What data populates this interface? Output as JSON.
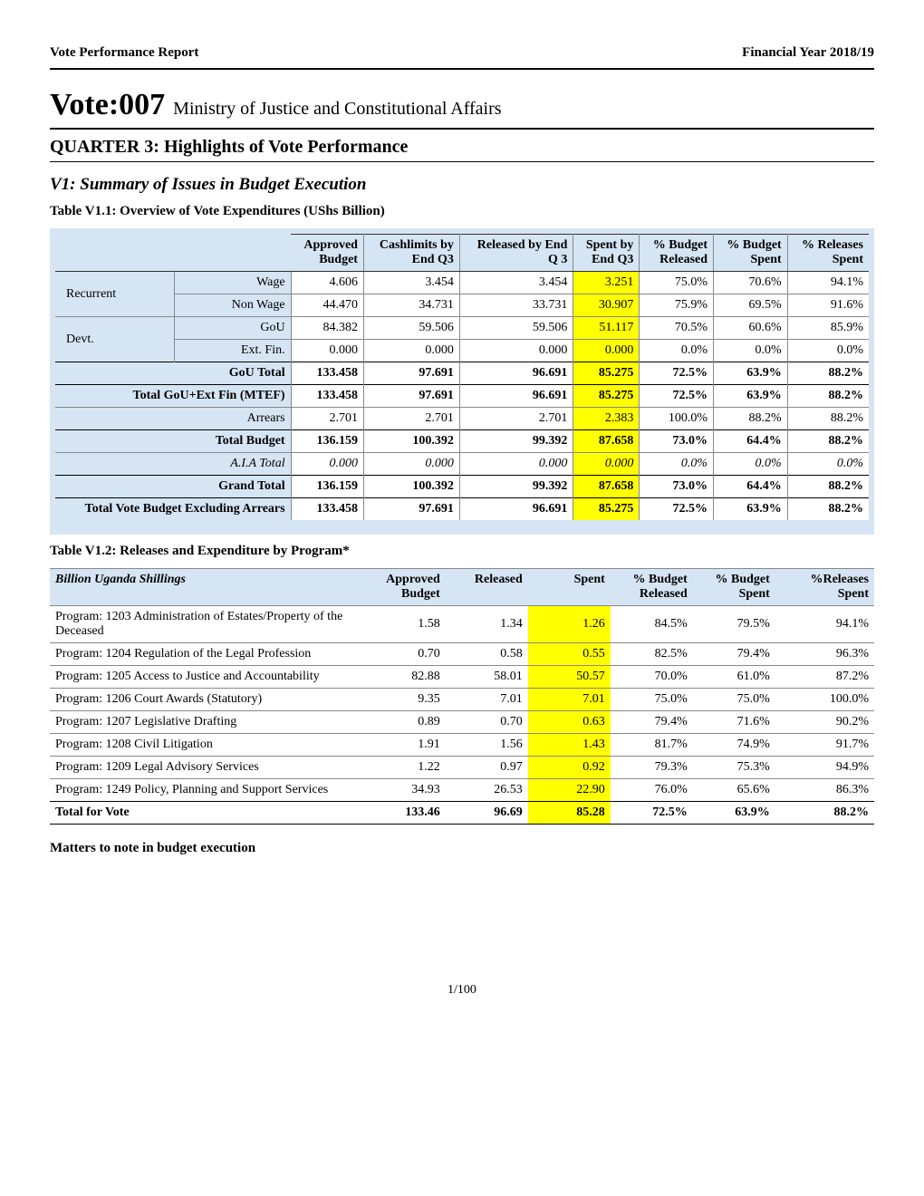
{
  "header": {
    "report": "Vote Performance Report",
    "fy": "Financial Year 2018/19"
  },
  "title": {
    "votePrefix": "Vote:007",
    "voteName": "Ministry of Justice and Constitutional Affairs",
    "quarter": "QUARTER 3: Highlights of Vote Performance",
    "v1": "V1: Summary of Issues in Budget Execution"
  },
  "t1": {
    "title": "Table V1.1: Overview of Vote Expenditures (UShs Billion)",
    "headers": [
      "Approved Budget",
      "Cashlimits by End Q3",
      "Released by End Q 3",
      "Spent by End Q3",
      "% Budget Released",
      "% Budget Spent",
      "% Releases Spent"
    ],
    "rows": [
      {
        "cat": "Recurrent",
        "label": "Wage",
        "v": [
          "4.606",
          "3.454",
          "3.454",
          "3.251",
          "75.0%",
          "70.6%",
          "94.1%"
        ],
        "catSpan": 2
      },
      {
        "label": "Non Wage",
        "v": [
          "44.470",
          "34.731",
          "33.731",
          "30.907",
          "75.9%",
          "69.5%",
          "91.6%"
        ]
      },
      {
        "cat": "Devt.",
        "label": "GoU",
        "v": [
          "84.382",
          "59.506",
          "59.506",
          "51.117",
          "70.5%",
          "60.6%",
          "85.9%"
        ],
        "catSpan": 2
      },
      {
        "label": "Ext. Fin.",
        "v": [
          "0.000",
          "0.000",
          "0.000",
          "0.000",
          "0.0%",
          "0.0%",
          "0.0%"
        ]
      },
      {
        "label": "GoU Total",
        "v": [
          "133.458",
          "97.691",
          "96.691",
          "85.275",
          "72.5%",
          "63.9%",
          "88.2%"
        ],
        "bold": true,
        "span": true
      },
      {
        "label": "Total GoU+Ext Fin (MTEF)",
        "v": [
          "133.458",
          "97.691",
          "96.691",
          "85.275",
          "72.5%",
          "63.9%",
          "88.2%"
        ],
        "bold": true,
        "span": true
      },
      {
        "label": "Arrears",
        "v": [
          "2.701",
          "2.701",
          "2.701",
          "2.383",
          "100.0%",
          "88.2%",
          "88.2%"
        ],
        "span": true
      },
      {
        "label": "Total Budget",
        "v": [
          "136.159",
          "100.392",
          "99.392",
          "87.658",
          "73.0%",
          "64.4%",
          "88.2%"
        ],
        "bold": true,
        "span": true
      },
      {
        "label": "A.I.A Total",
        "v": [
          "0.000",
          "0.000",
          "0.000",
          "0.000",
          "0.0%",
          "0.0%",
          "0.0%"
        ],
        "italic": true,
        "span": true
      },
      {
        "label": "Grand Total",
        "v": [
          "136.159",
          "100.392",
          "99.392",
          "87.658",
          "73.0%",
          "64.4%",
          "88.2%"
        ],
        "bold": true,
        "span": true
      },
      {
        "label": "Total Vote Budget Excluding Arrears",
        "v": [
          "133.458",
          "97.691",
          "96.691",
          "85.275",
          "72.5%",
          "63.9%",
          "88.2%"
        ],
        "bold": true,
        "span": true
      }
    ]
  },
  "t2": {
    "title": "Table V1.2: Releases and Expenditure by Program*",
    "headers": [
      "Billion Uganda Shillings",
      "Approved Budget",
      "Released",
      "Spent",
      "% Budget Released",
      "% Budget Spent",
      "%Releases Spent"
    ],
    "rows": [
      {
        "p": "Program: 1203 Administration of Estates/Property of the Deceased",
        "v": [
          "1.58",
          "1.34",
          "1.26",
          "84.5%",
          "79.5%",
          "94.1%"
        ]
      },
      {
        "p": "Program: 1204 Regulation of the Legal Profession",
        "v": [
          "0.70",
          "0.58",
          "0.55",
          "82.5%",
          "79.4%",
          "96.3%"
        ]
      },
      {
        "p": "Program: 1205 Access to Justice and Accountability",
        "v": [
          "82.88",
          "58.01",
          "50.57",
          "70.0%",
          "61.0%",
          "87.2%"
        ]
      },
      {
        "p": "Program: 1206 Court Awards (Statutory)",
        "v": [
          "9.35",
          "7.01",
          "7.01",
          "75.0%",
          "75.0%",
          "100.0%"
        ]
      },
      {
        "p": "Program: 1207 Legislative Drafting",
        "v": [
          "0.89",
          "0.70",
          "0.63",
          "79.4%",
          "71.6%",
          "90.2%"
        ]
      },
      {
        "p": "Program: 1208 Civil Litigation",
        "v": [
          "1.91",
          "1.56",
          "1.43",
          "81.7%",
          "74.9%",
          "91.7%"
        ]
      },
      {
        "p": "Program: 1209 Legal Advisory Services",
        "v": [
          "1.22",
          "0.97",
          "0.92",
          "79.3%",
          "75.3%",
          "94.9%"
        ]
      },
      {
        "p": "Program: 1249 Policy, Planning and Support Services",
        "v": [
          "34.93",
          "26.53",
          "22.90",
          "76.0%",
          "65.6%",
          "86.3%"
        ]
      }
    ],
    "total": {
      "p": "Total for Vote",
      "v": [
        "133.46",
        "96.69",
        "85.28",
        "72.5%",
        "63.9%",
        "88.2%"
      ]
    }
  },
  "matters": "Matters to note in budget execution",
  "pageNum": "1/100",
  "colors": {
    "highlight": "#ffff00",
    "headerBg": "#d6e5f4",
    "border": "#888888"
  }
}
